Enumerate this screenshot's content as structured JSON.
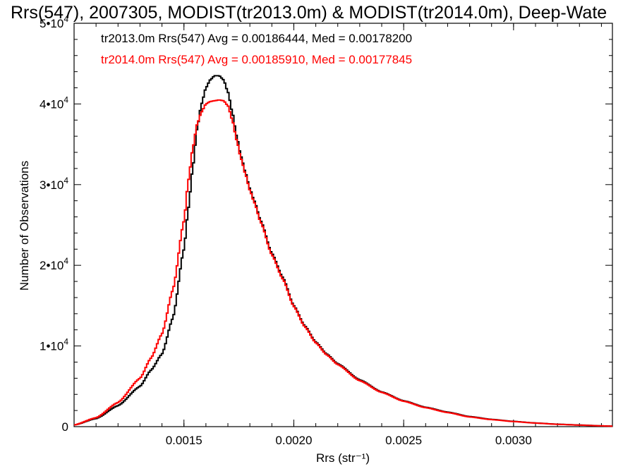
{
  "chart_data": {
    "type": "line",
    "title": "Rrs(547), 2007305, MODIST(tr2013.0m) & MODIST(tr2014.0m), Deep-Wate",
    "xlabel": "Rrs (str⁻¹)",
    "ylabel": "Number of Observations",
    "xlim": [
      0.001,
      0.00345
    ],
    "ylim": [
      0,
      50000
    ],
    "x_ticks": [
      0.0015,
      0.002,
      0.0025,
      0.003
    ],
    "x_tick_labels": [
      "0.0015",
      "0.0020",
      "0.0025",
      "0.0030"
    ],
    "y_ticks": [
      0,
      10000,
      20000,
      30000,
      40000,
      50000
    ],
    "y_tick_labels": [
      {
        "base": "0",
        "exp": ""
      },
      {
        "base": "1•10",
        "exp": "4"
      },
      {
        "base": "2•10",
        "exp": "4"
      },
      {
        "base": "3•10",
        "exp": "4"
      },
      {
        "base": "4•10",
        "exp": "4"
      },
      {
        "base": "5•10",
        "exp": "4"
      }
    ],
    "grid": false,
    "legend_position": "top-left",
    "step_style": true,
    "series": [
      {
        "name": "tr2013.0m",
        "legend_text": "tr2013.0m Rrs(547) Avg = 0.00186444, Med = 0.00178200",
        "color": "#000000",
        "x": [
          0.001,
          0.0011,
          0.0012,
          0.0013,
          0.00135,
          0.0014,
          0.00145,
          0.0015,
          0.00152,
          0.00154,
          0.00156,
          0.00158,
          0.0016,
          0.00162,
          0.00164,
          0.00166,
          0.00168,
          0.0017,
          0.00172,
          0.00174,
          0.00176,
          0.00178,
          0.0018,
          0.00182,
          0.00185,
          0.0019,
          0.00195,
          0.002,
          0.00205,
          0.0021,
          0.00215,
          0.0022,
          0.0023,
          0.0024,
          0.0025,
          0.0026,
          0.0027,
          0.0028,
          0.0029,
          0.003,
          0.0031,
          0.0032,
          0.0033,
          0.0034,
          0.00345
        ],
        "y": [
          200,
          1000,
          2600,
          5000,
          7000,
          9000,
          13500,
          22000,
          27000,
          32000,
          37000,
          40000,
          42000,
          43000,
          43500,
          43500,
          43000,
          41500,
          39000,
          36000,
          33500,
          31500,
          29500,
          28000,
          25500,
          21500,
          18500,
          15000,
          12500,
          10500,
          9000,
          7800,
          5800,
          4300,
          3200,
          2400,
          1800,
          1250,
          900,
          650,
          450,
          300,
          200,
          100,
          60
        ]
      },
      {
        "name": "tr2014.0m",
        "legend_text": "tr2014.0m Rrs(547) Avg = 0.00185910, Med = 0.00177845",
        "color": "#ff0000",
        "x": [
          0.001,
          0.0011,
          0.0012,
          0.0013,
          0.00135,
          0.0014,
          0.00145,
          0.0015,
          0.00152,
          0.00154,
          0.00156,
          0.00158,
          0.0016,
          0.00162,
          0.00164,
          0.00166,
          0.00168,
          0.0017,
          0.00172,
          0.00174,
          0.00176,
          0.00178,
          0.0018,
          0.00182,
          0.00185,
          0.0019,
          0.00195,
          0.002,
          0.00205,
          0.0021,
          0.00215,
          0.0022,
          0.0023,
          0.0024,
          0.0025,
          0.0026,
          0.0027,
          0.0028,
          0.0029,
          0.003,
          0.0031,
          0.0032,
          0.0033,
          0.0034,
          0.00345
        ],
        "y": [
          200,
          1100,
          3000,
          6000,
          8500,
          11500,
          17000,
          25500,
          30500,
          34500,
          37500,
          39000,
          40000,
          40300,
          40400,
          40500,
          40400,
          39800,
          38000,
          35500,
          33200,
          31300,
          29300,
          27800,
          25300,
          21300,
          18300,
          14900,
          12400,
          10400,
          8900,
          7700,
          5700,
          4250,
          3150,
          2350,
          1750,
          1200,
          870,
          630,
          440,
          290,
          190,
          95,
          55
        ]
      }
    ]
  }
}
